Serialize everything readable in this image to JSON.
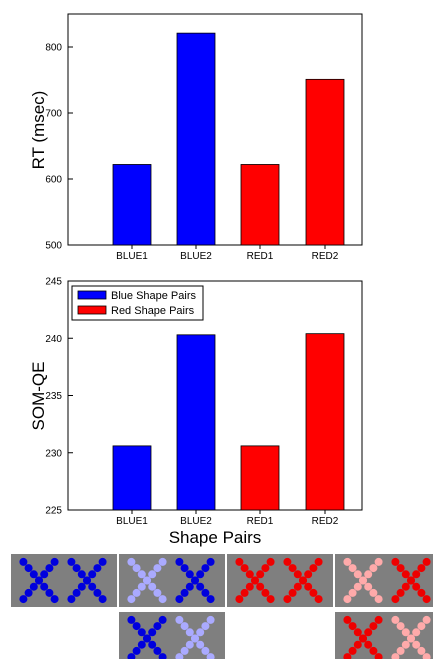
{
  "chart_data": [
    {
      "type": "bar",
      "categories": [
        "BLUE1",
        "BLUE2",
        "RED1",
        "RED2"
      ],
      "values": [
        622,
        821,
        622,
        751
      ],
      "bar_colors": [
        "#0000ff",
        "#0000ff",
        "#ff0000",
        "#ff0000"
      ],
      "title": "",
      "xlabel": "",
      "ylabel": "RT (msec)",
      "ylim": [
        500,
        850
      ],
      "yticks": [
        500,
        600,
        700,
        800
      ],
      "grid": false
    },
    {
      "type": "bar",
      "categories": [
        "BLUE1",
        "BLUE2",
        "RED1",
        "RED2"
      ],
      "values": [
        230.6,
        240.3,
        230.6,
        240.4
      ],
      "bar_colors": [
        "#0000ff",
        "#0000ff",
        "#ff0000",
        "#ff0000"
      ],
      "title": "",
      "xlabel": "Shape Pairs",
      "ylabel": "SOM-QE",
      "ylim": [
        225,
        245
      ],
      "yticks": [
        225,
        230,
        235,
        240,
        245
      ],
      "grid": false,
      "legend": {
        "placement": "top-left",
        "entries": [
          {
            "label": "Blue Shape Pairs",
            "color": "#0000ff"
          },
          {
            "label": "Red Shape Pairs",
            "color": "#ff0000"
          }
        ]
      }
    }
  ],
  "stimuli": {
    "background_color": "#7f7f7f",
    "colors": {
      "blue": "#0000dd",
      "light_blue": "#aaaaff",
      "red": "#ee0000",
      "light_red": "#ffaaaa"
    },
    "panels": [
      {
        "name": "blue1-top",
        "row": 0,
        "pair": [
          "blue",
          "blue"
        ]
      },
      {
        "name": "blue2-top",
        "row": 0,
        "pair": [
          "light_blue",
          "blue"
        ]
      },
      {
        "name": "red1-top",
        "row": 0,
        "pair": [
          "red",
          "red"
        ]
      },
      {
        "name": "red2-top",
        "row": 0,
        "pair": [
          "light_red",
          "red"
        ]
      },
      {
        "name": "blue2-bottom",
        "row": 1,
        "pair": [
          "blue",
          "light_blue"
        ]
      },
      {
        "name": "red2-bottom",
        "row": 1,
        "pair": [
          "red",
          "light_red"
        ]
      }
    ]
  }
}
